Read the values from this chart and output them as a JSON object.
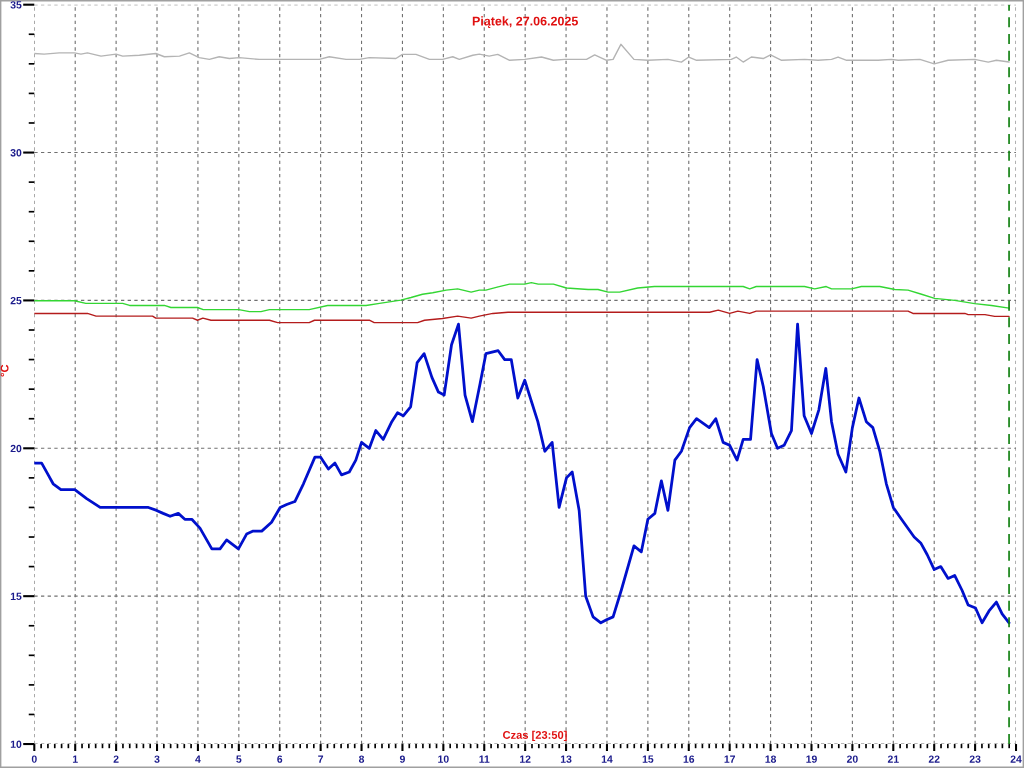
{
  "chart_data": {
    "type": "line",
    "title": "Piątek, 27.06.2025",
    "xlabel": "Czas [23:50]",
    "ylabel": "°C",
    "xlim": [
      0,
      24
    ],
    "ylim": [
      10,
      35
    ],
    "xticks": [
      0,
      {
        "value": 0.167,
        "label": null
      },
      {
        "value": 0.333,
        "label": null
      },
      {
        "value": 0.5,
        "label": null
      },
      {
        "value": 0.667,
        "label": null
      },
      {
        "value": 0.833,
        "label": null
      },
      1,
      {
        "value": 1.167,
        "label": null
      },
      {
        "value": 1.333,
        "label": null
      },
      {
        "value": 1.5,
        "label": null
      },
      {
        "value": 1.667,
        "label": null
      },
      {
        "value": 1.833,
        "label": null
      },
      2,
      {
        "value": 2.167,
        "label": null
      },
      {
        "value": 2.333,
        "label": null
      },
      {
        "value": 2.5,
        "label": null
      },
      {
        "value": 2.667,
        "label": null
      },
      {
        "value": 2.833,
        "label": null
      },
      3,
      {
        "value": 3.167,
        "label": null
      },
      {
        "value": 3.333,
        "label": null
      },
      {
        "value": 3.5,
        "label": null
      },
      {
        "value": 3.667,
        "label": null
      },
      {
        "value": 3.833,
        "label": null
      },
      4,
      {
        "value": 4.167,
        "label": null
      },
      {
        "value": 4.333,
        "label": null
      },
      {
        "value": 4.5,
        "label": null
      },
      {
        "value": 4.667,
        "label": null
      },
      {
        "value": 4.833,
        "label": null
      },
      5,
      {
        "value": 5.167,
        "label": null
      },
      {
        "value": 5.333,
        "label": null
      },
      {
        "value": 5.5,
        "label": null
      },
      {
        "value": 5.667,
        "label": null
      },
      {
        "value": 5.833,
        "label": null
      },
      6,
      {
        "value": 6.167,
        "label": null
      },
      {
        "value": 6.333,
        "label": null
      },
      {
        "value": 6.5,
        "label": null
      },
      {
        "value": 6.667,
        "label": null
      },
      {
        "value": 6.833,
        "label": null
      },
      7,
      {
        "value": 7.167,
        "label": null
      },
      {
        "value": 7.333,
        "label": null
      },
      {
        "value": 7.5,
        "label": null
      },
      {
        "value": 7.667,
        "label": null
      },
      {
        "value": 7.833,
        "label": null
      },
      8,
      {
        "value": 8.167,
        "label": null
      },
      {
        "value": 8.333,
        "label": null
      },
      {
        "value": 8.5,
        "label": null
      },
      {
        "value": 8.667,
        "label": null
      },
      {
        "value": 8.833,
        "label": null
      },
      9,
      {
        "value": 9.167,
        "label": null
      },
      {
        "value": 9.333,
        "label": null
      },
      {
        "value": 9.5,
        "label": null
      },
      {
        "value": 9.667,
        "label": null
      },
      {
        "value": 9.833,
        "label": null
      },
      10,
      {
        "value": 10.167,
        "label": null
      },
      {
        "value": 10.333,
        "label": null
      },
      {
        "value": 10.5,
        "label": null
      },
      {
        "value": 10.667,
        "label": null
      },
      {
        "value": 10.833,
        "label": null
      },
      11,
      {
        "value": 11.167,
        "label": null
      },
      {
        "value": 11.333,
        "label": null
      },
      {
        "value": 11.5,
        "label": null
      },
      {
        "value": 11.667,
        "label": null
      },
      {
        "value": 11.833,
        "label": null
      },
      12,
      {
        "value": 12.167,
        "label": null
      },
      {
        "value": 12.333,
        "label": null
      },
      {
        "value": 12.5,
        "label": null
      },
      {
        "value": 12.667,
        "label": null
      },
      {
        "value": 12.833,
        "label": null
      },
      13,
      {
        "value": 13.167,
        "label": null
      },
      {
        "value": 13.333,
        "label": null
      },
      {
        "value": 13.5,
        "label": null
      },
      {
        "value": 13.667,
        "label": null
      },
      {
        "value": 13.833,
        "label": null
      },
      14,
      {
        "value": 14.167,
        "label": null
      },
      {
        "value": 14.333,
        "label": null
      },
      {
        "value": 14.5,
        "label": null
      },
      {
        "value": 14.667,
        "label": null
      },
      {
        "value": 14.833,
        "label": null
      },
      15,
      {
        "value": 15.167,
        "label": null
      },
      {
        "value": 15.333,
        "label": null
      },
      {
        "value": 15.5,
        "label": null
      },
      {
        "value": 15.667,
        "label": null
      },
      {
        "value": 15.833,
        "label": null
      },
      16,
      {
        "value": 16.167,
        "label": null
      },
      {
        "value": 16.333,
        "label": null
      },
      {
        "value": 16.5,
        "label": null
      },
      {
        "value": 16.667,
        "label": null
      },
      {
        "value": 16.833,
        "label": null
      },
      17,
      {
        "value": 17.167,
        "label": null
      },
      {
        "value": 17.333,
        "label": null
      },
      {
        "value": 17.5,
        "label": null
      },
      {
        "value": 17.667,
        "label": null
      },
      {
        "value": 17.833,
        "label": null
      },
      18,
      {
        "value": 18.167,
        "label": null
      },
      {
        "value": 18.333,
        "label": null
      },
      {
        "value": 18.5,
        "label": null
      },
      {
        "value": 18.667,
        "label": null
      },
      {
        "value": 18.833,
        "label": null
      },
      19,
      {
        "value": 19.167,
        "label": null
      },
      {
        "value": 19.333,
        "label": null
      },
      {
        "value": 19.5,
        "label": null
      },
      {
        "value": 19.667,
        "label": null
      },
      {
        "value": 19.833,
        "label": null
      },
      20,
      {
        "value": 20.167,
        "label": null
      },
      {
        "value": 20.333,
        "label": null
      },
      {
        "value": 20.5,
        "label": null
      },
      {
        "value": 20.667,
        "label": null
      },
      {
        "value": 20.833,
        "label": null
      },
      21,
      {
        "value": 21.167,
        "label": null
      },
      {
        "value": 21.333,
        "label": null
      },
      {
        "value": 21.5,
        "label": null
      },
      {
        "value": 21.667,
        "label": null
      },
      {
        "value": 21.833,
        "label": null
      },
      22,
      {
        "value": 22.167,
        "label": null
      },
      {
        "value": 22.333,
        "label": null
      },
      {
        "value": 22.5,
        "label": null
      },
      {
        "value": 22.667,
        "label": null
      },
      {
        "value": 22.833,
        "label": null
      },
      23,
      {
        "value": 23.167,
        "label": null
      },
      {
        "value": 23.333,
        "label": null
      },
      {
        "value": 23.5,
        "label": null
      },
      {
        "value": 23.667,
        "label": null
      },
      {
        "value": 23.833,
        "label": null
      },
      24
    ],
    "yticks": [
      10,
      {
        "value": 11,
        "label": null
      },
      {
        "value": 12,
        "label": null
      },
      {
        "value": 13,
        "label": null
      },
      {
        "value": 14,
        "label": null
      },
      15,
      {
        "value": 16,
        "label": null
      },
      {
        "value": 17,
        "label": null
      },
      {
        "value": 18,
        "label": null
      },
      {
        "value": 19,
        "label": null
      },
      20,
      {
        "value": 21,
        "label": null
      },
      {
        "value": 22,
        "label": null
      },
      {
        "value": 23,
        "label": null
      },
      {
        "value": 24,
        "label": null
      },
      25,
      {
        "value": 26,
        "label": null
      },
      {
        "value": 27,
        "label": null
      },
      {
        "value": 28,
        "label": null
      },
      {
        "value": 29,
        "label": null
      },
      30,
      {
        "value": 31,
        "label": null
      },
      {
        "value": 32,
        "label": null
      },
      {
        "value": 33,
        "label": null
      },
      {
        "value": 34,
        "label": null
      },
      35
    ],
    "grid": true,
    "ref_lines": [
      {
        "axis": "x",
        "value": 23.83,
        "color": "#108010",
        "line_style": "dashed"
      }
    ],
    "series": [
      {
        "color": "#b4b4b4",
        "x": [
          0,
          0.24,
          0.61,
          0.98,
          1.14,
          1.3,
          1.63,
          2.0,
          2.16,
          2.57,
          2.97,
          3.18,
          3.55,
          3.79,
          4.03,
          4.28,
          4.52,
          4.77,
          5.01,
          5.5,
          6.0,
          6.48,
          6.97,
          7.21,
          7.62,
          7.95,
          8.19,
          8.84,
          9.0,
          9.33,
          9.66,
          9.98,
          10.23,
          10.39,
          10.72,
          10.88,
          11.12,
          11.33,
          11.62,
          11.99,
          12.4,
          12.69,
          12.97,
          13.5,
          13.7,
          13.99,
          14.15,
          14.34,
          14.66,
          15.0,
          15.49,
          15.82,
          16.0,
          16.19,
          17.04,
          17.16,
          17.33,
          17.53,
          17.82,
          18.0,
          18.27,
          18.83,
          19.16,
          19.49,
          19.65,
          19.86,
          20.63,
          20.95,
          21.12,
          21.65,
          22.0,
          22.34,
          22.99,
          23.32,
          23.52,
          23.83
        ],
        "values": [
          33.35,
          33.33,
          33.37,
          33.37,
          33.33,
          33.37,
          33.26,
          33.33,
          33.26,
          33.29,
          33.35,
          33.24,
          33.26,
          33.37,
          33.21,
          33.15,
          33.24,
          33.18,
          33.21,
          33.15,
          33.15,
          33.15,
          33.15,
          33.24,
          33.15,
          33.15,
          33.21,
          33.18,
          33.32,
          33.32,
          33.15,
          33.15,
          33.24,
          33.15,
          33.29,
          33.33,
          33.26,
          33.32,
          33.12,
          33.15,
          33.23,
          33.12,
          33.15,
          33.15,
          33.3,
          33.12,
          33.15,
          33.66,
          33.15,
          33.12,
          33.15,
          33.06,
          33.23,
          33.12,
          33.15,
          33.23,
          33.06,
          33.23,
          33.18,
          33.3,
          33.12,
          33.15,
          33.12,
          33.15,
          33.23,
          33.12,
          33.12,
          33.15,
          33.12,
          33.15,
          33.0,
          33.12,
          33.15,
          33.06,
          33.12,
          33.06
        ]
      },
      {
        "color": "#33d633",
        "x": [
          0,
          0.98,
          1.26,
          2.16,
          2.33,
          3.18,
          3.34,
          3.99,
          4.13,
          5.0,
          5.26,
          5.54,
          5.75,
          6.72,
          7.17,
          8.11,
          8.44,
          8.96,
          9.21,
          9.49,
          9.74,
          10.07,
          10.35,
          10.68,
          10.88,
          11.04,
          11.34,
          11.62,
          11.99,
          12.15,
          12.32,
          12.69,
          13.01,
          13.54,
          13.78,
          14.03,
          14.31,
          14.75,
          15.16,
          17.33,
          17.49,
          17.65,
          18.83,
          19.08,
          19.36,
          19.49,
          19.98,
          20.22,
          20.67,
          21.04,
          21.36,
          21.69,
          22.01,
          22.5,
          22.99,
          23.4,
          23.83
        ],
        "values": [
          24.99,
          24.99,
          24.9,
          24.9,
          24.83,
          24.83,
          24.76,
          24.76,
          24.69,
          24.69,
          24.62,
          24.62,
          24.69,
          24.69,
          24.83,
          24.83,
          24.9,
          25.01,
          25.1,
          25.21,
          25.26,
          25.35,
          25.39,
          25.28,
          25.35,
          25.35,
          25.46,
          25.55,
          25.55,
          25.6,
          25.55,
          25.55,
          25.42,
          25.37,
          25.37,
          25.28,
          25.28,
          25.42,
          25.47,
          25.47,
          25.39,
          25.47,
          25.47,
          25.39,
          25.47,
          25.39,
          25.39,
          25.47,
          25.47,
          25.37,
          25.35,
          25.21,
          25.07,
          25.0,
          24.89,
          24.83,
          24.74
        ]
      },
      {
        "color": "#b41c1c",
        "x": [
          0,
          1.3,
          1.51,
          2.89,
          2.97,
          3.87,
          3.99,
          4.12,
          4.32,
          5.75,
          5.95,
          6.72,
          6.85,
          8.19,
          8.31,
          9.37,
          9.54,
          9.98,
          10.35,
          10.68,
          10.88,
          11.21,
          11.58,
          16.51,
          16.72,
          17.0,
          17.2,
          17.49,
          17.65,
          21.36,
          21.48,
          22.75,
          22.83,
          23.24,
          23.48,
          23.83
        ],
        "values": [
          24.56,
          24.56,
          24.47,
          24.47,
          24.4,
          24.4,
          24.33,
          24.4,
          24.33,
          24.33,
          24.25,
          24.25,
          24.33,
          24.33,
          24.25,
          24.25,
          24.33,
          24.39,
          24.47,
          24.4,
          24.47,
          24.56,
          24.6,
          24.6,
          24.67,
          24.56,
          24.64,
          24.56,
          24.64,
          24.64,
          24.56,
          24.56,
          24.52,
          24.52,
          24.46,
          24.46
        ]
      },
      {
        "color": "#0010cc",
        "x": [
          0,
          0.18,
          0.34,
          0.46,
          0.65,
          0.99,
          1.28,
          1.61,
          1.93,
          2.5,
          2.79,
          2.99,
          3.15,
          3.32,
          3.52,
          3.68,
          3.85,
          4.05,
          4.34,
          4.54,
          4.7,
          4.99,
          5.19,
          5.35,
          5.56,
          5.8,
          6.01,
          6.17,
          6.37,
          6.58,
          6.86,
          7.0,
          7.19,
          7.35,
          7.51,
          7.7,
          7.86,
          8.0,
          8.19,
          8.35,
          8.53,
          8.74,
          8.88,
          9.02,
          9.2,
          9.36,
          9.53,
          9.72,
          9.88,
          10.02,
          10.2,
          10.37,
          10.53,
          10.71,
          10.9,
          11.04,
          11.34,
          11.5,
          11.66,
          11.82,
          11.99,
          12.15,
          12.31,
          12.48,
          12.66,
          12.83,
          13.01,
          13.15,
          13.32,
          13.48,
          13.66,
          13.85,
          13.99,
          14.15,
          14.35,
          14.66,
          14.84,
          15.0,
          15.17,
          15.33,
          15.49,
          15.66,
          15.82,
          16.02,
          16.19,
          16.5,
          16.66,
          16.84,
          17.0,
          17.18,
          17.33,
          17.51,
          17.67,
          17.82,
          18.02,
          18.17,
          18.33,
          18.51,
          18.66,
          18.82,
          19.0,
          19.18,
          19.35,
          19.49,
          19.65,
          19.84,
          20.0,
          20.16,
          20.34,
          20.5,
          20.67,
          20.83,
          21.0,
          21.2,
          21.51,
          21.67,
          21.83,
          22.0,
          22.16,
          22.34,
          22.5,
          22.68,
          22.83,
          23.01,
          23.17,
          23.34,
          23.52,
          23.66,
          23.83
        ],
        "values": [
          19.5,
          19.5,
          19.1,
          18.8,
          18.6,
          18.6,
          18.3,
          18.0,
          18.0,
          18.0,
          18.0,
          17.9,
          17.8,
          17.7,
          17.8,
          17.6,
          17.6,
          17.3,
          16.6,
          16.6,
          16.9,
          16.6,
          17.1,
          17.2,
          17.2,
          17.5,
          18.0,
          18.1,
          18.2,
          18.8,
          19.7,
          19.7,
          19.3,
          19.5,
          19.1,
          19.2,
          19.6,
          20.2,
          20.0,
          20.6,
          20.3,
          20.9,
          21.2,
          21.1,
          21.4,
          22.9,
          23.2,
          22.4,
          21.9,
          21.8,
          23.5,
          24.2,
          21.8,
          20.9,
          22.2,
          23.2,
          23.3,
          23.0,
          23.0,
          21.7,
          22.3,
          21.6,
          20.9,
          19.9,
          20.2,
          18.0,
          19.0,
          19.2,
          17.9,
          15.0,
          14.3,
          14.1,
          14.2,
          14.3,
          15.2,
          16.7,
          16.5,
          17.6,
          17.8,
          18.9,
          17.9,
          19.6,
          19.9,
          20.7,
          21.0,
          20.7,
          21.0,
          20.2,
          20.1,
          19.6,
          20.3,
          20.3,
          23.0,
          22.1,
          20.5,
          20.0,
          20.1,
          20.6,
          24.2,
          21.1,
          20.5,
          21.3,
          22.7,
          20.9,
          19.8,
          19.2,
          20.7,
          21.7,
          20.9,
          20.7,
          19.9,
          18.8,
          18.0,
          17.6,
          17.0,
          16.8,
          16.4,
          15.9,
          16.0,
          15.6,
          15.7,
          15.2,
          14.7,
          14.6,
          14.1,
          14.5,
          14.8,
          14.4,
          14.1
        ]
      }
    ]
  }
}
